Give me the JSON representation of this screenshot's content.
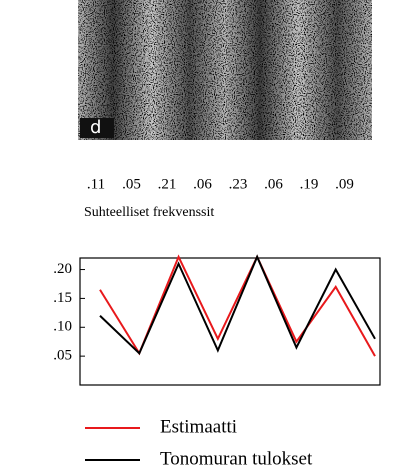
{
  "chart_data": {
    "type": "line",
    "panel_label": "d",
    "frequency_labels": [
      ".11",
      ".05",
      ".21",
      ".06",
      ".23",
      ".06",
      ".19",
      ".09"
    ],
    "caption": "Suhteelliset frekvenssit",
    "categories": [
      null,
      null,
      null,
      null,
      null,
      null,
      null,
      null
    ],
    "series": [
      {
        "name": "Estimaatti",
        "color": "#e8191c",
        "values": [
          0.165,
          0.055,
          0.222,
          0.08,
          0.222,
          0.075,
          0.17,
          0.05
        ]
      },
      {
        "name": "Tonomuran tulokset",
        "color": "#000000",
        "values": [
          0.12,
          0.055,
          0.21,
          0.06,
          0.222,
          0.065,
          0.2,
          0.08
        ]
      }
    ],
    "ylim": [
      0,
      0.22
    ],
    "yticks": [
      {
        "value": 0.05,
        "label": ".05"
      },
      {
        "value": 0.1,
        "label": ".10"
      },
      {
        "value": 0.15,
        "label": ".15"
      },
      {
        "value": 0.2,
        "label": ".20"
      }
    ]
  }
}
